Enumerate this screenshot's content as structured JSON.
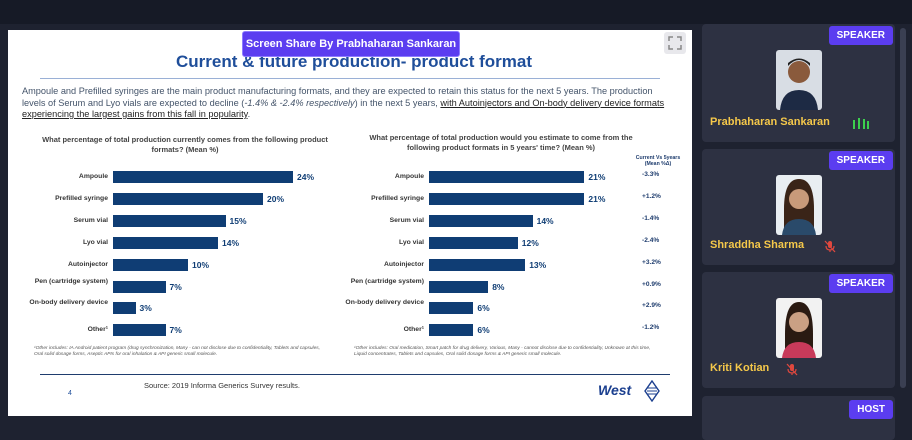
{
  "share_badge": "Screen Share By Prabhaharan Sankaran",
  "slide": {
    "title": "Current & future production- product format",
    "intro_part1": "Ampoule and Prefilled syringes are the main product manufacturing formats, and they are expected to retain this status for the next 5 years. The production levels of Serum and Lyo vials are expected to decline (",
    "intro_italic": "-1.4% & -2.4% respectively",
    "intro_part2": ") in the next 5 years, ",
    "intro_highlight": "with Autoinjectors and On-body delivery device formats experiencing the largest gains from this fall in popularity",
    "intro_end": ".",
    "left_question": "What percentage of total production currently comes from the following product formats? (Mean %)",
    "right_question": "What percentage of total production would you estimate to come from the following product formats in 5 years' time? (Mean %)",
    "compare_header": "Current Vs 5years (Mean %Δ)",
    "left_footnote": "¹Other includes: IA Android patient program (drug synchronization, Many - can not disclose due to confidentiality, Tablets and capsules, Oral solid dosage forms, Aseptic APIs for oral inhalation & API generic small molecule.",
    "right_footnote": "¹Other includes: Oral medication, Smart patch for drug delivery, Various, Many - cannot disclose due to confidentiality, Unknown at this time, Liquid concentrates, Tablets and capsules, Oral solid dosage forms & API generic small molecule.",
    "source": "Source: 2019 Informa Generics Survey results.",
    "page_number": "4",
    "logo_text": "West"
  },
  "chart_data": [
    {
      "type": "bar",
      "orientation": "horizontal",
      "title": "What percentage of total production currently comes from the following product formats? (Mean %)",
      "categories": [
        "Ampoule",
        "Prefilled syringe",
        "Serum vial",
        "Lyo vial",
        "Autoinjector",
        "Pen (cartridge system)",
        "On-body delivery device",
        "Other¹"
      ],
      "values": [
        24,
        20,
        15,
        14,
        10,
        7,
        3,
        7
      ],
      "value_labels": [
        "24%",
        "20%",
        "15%",
        "14%",
        "10%",
        "7%",
        "3%",
        "7%"
      ],
      "color": "#0f3d74"
    },
    {
      "type": "bar",
      "orientation": "horizontal",
      "title": "What percentage of total production would you estimate to come from the following product formats in 5 years' time? (Mean %)",
      "categories": [
        "Ampoule",
        "Prefilled syringe",
        "Serum vial",
        "Lyo vial",
        "Autoinjector",
        "Pen (cartridge system)",
        "On-body delivery device",
        "Other¹"
      ],
      "values": [
        21,
        21,
        14,
        12,
        13,
        8,
        6,
        6
      ],
      "value_labels": [
        "21%",
        "21%",
        "14%",
        "12%",
        "13%",
        "8%",
        "6%",
        "6%"
      ],
      "change_labels": [
        "-3.3%",
        "+1.2%",
        "-1.4%",
        "-2.4%",
        "+3.2%",
        "+0.9%",
        "+2.9%",
        "-1.2%"
      ],
      "color": "#0f3d74"
    }
  ],
  "participants": [
    {
      "name": "Prabhaharan Sankaran",
      "tag": "SPEAKER",
      "mic": "active"
    },
    {
      "name": "Shraddha Sharma",
      "tag": "SPEAKER",
      "mic": "muted"
    },
    {
      "name": "Kriti Kotian",
      "tag": "SPEAKER",
      "mic": "muted"
    },
    {
      "name": "",
      "tag": "HOST",
      "mic": "none"
    }
  ],
  "colors": {
    "accent": "#5b3df0",
    "name": "#f5c84a",
    "bar": "#0f3d74",
    "muted": "#e0483e",
    "active": "#3ccf4e"
  },
  "icons": {
    "expand": "expand-icon",
    "mic_active": "mic-level-icon",
    "mic_muted": "mic-muted-icon"
  }
}
